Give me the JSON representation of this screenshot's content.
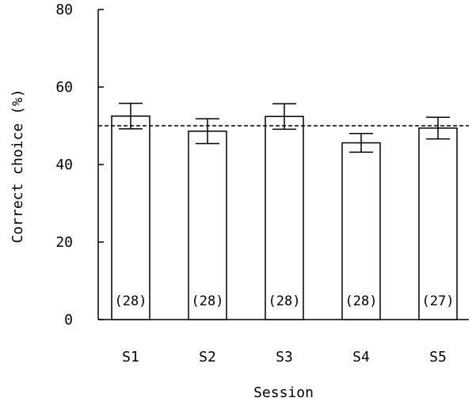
{
  "chart_data": {
    "type": "bar",
    "title": "",
    "xlabel": "Session",
    "ylabel": "Correct choice (%)",
    "ylim": [
      0,
      80
    ],
    "yticks": [
      0,
      20,
      40,
      60,
      80
    ],
    "grid": false,
    "categories": [
      "S1",
      "S2",
      "S3",
      "S4",
      "S5"
    ],
    "values": [
      52.5,
      48.6,
      52.4,
      45.6,
      49.4
    ],
    "error_low": [
      49.2,
      45.4,
      49.1,
      43.2,
      46.6
    ],
    "error_high": [
      55.8,
      51.8,
      55.7,
      48.0,
      52.2
    ],
    "n_labels": [
      "(28)",
      "(28)",
      "(28)",
      "(28)",
      "(27)"
    ],
    "reference_line": {
      "value": 50,
      "style": "dashed"
    },
    "colors": {
      "bar_fill": "#ffffff",
      "stroke": "#000000"
    }
  }
}
